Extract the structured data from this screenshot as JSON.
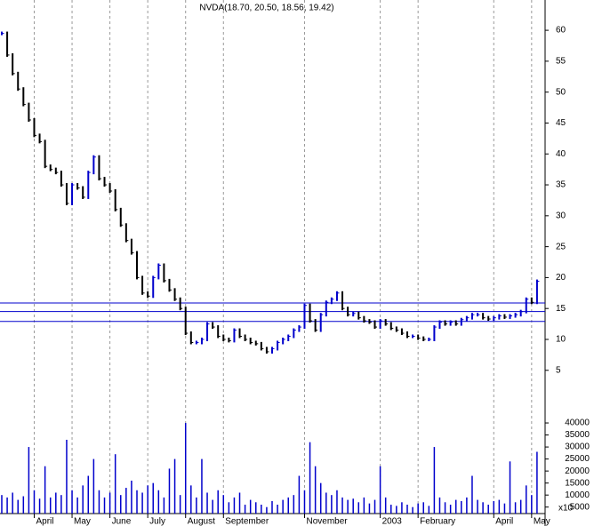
{
  "chart_data": {
    "type": "ohlc",
    "title": "NVDA(18.70, 20.50, 18.56, 19.42)",
    "categories": [
      null,
      null,
      null,
      null,
      null,
      null,
      "April",
      null,
      null,
      null,
      null,
      null,
      null,
      "May",
      null,
      null,
      null,
      null,
      null,
      null,
      "June",
      null,
      null,
      null,
      null,
      null,
      null,
      "July",
      null,
      null,
      null,
      null,
      null,
      null,
      "August",
      null,
      null,
      null,
      null,
      null,
      null,
      "September",
      null,
      null,
      null,
      null,
      null,
      null,
      null,
      null,
      null,
      null,
      null,
      null,
      null,
      null,
      "November",
      null,
      null,
      null,
      null,
      null,
      null,
      null,
      null,
      null,
      null,
      null,
      null,
      null,
      "2003",
      null,
      null,
      null,
      null,
      null,
      null,
      "February",
      null,
      null,
      null,
      null,
      null,
      null,
      null,
      null,
      null,
      null,
      null,
      null,
      null,
      "April",
      null,
      null,
      null,
      null,
      null,
      null,
      "May",
      null
    ],
    "series": [
      {
        "values": [
          59.5,
          56,
          53,
          50.5,
          48,
          45.5,
          43,
          42,
          38,
          37.5,
          37,
          35,
          32,
          35,
          34.5,
          33,
          37,
          39.5,
          36,
          35,
          34,
          31,
          28.5,
          26,
          24,
          20,
          17.5,
          17,
          20,
          22,
          19.5,
          18,
          16.5,
          15,
          11,
          9.5,
          9.5,
          10,
          12.5,
          12,
          10.5,
          10,
          9.8,
          11.5,
          10.5,
          10,
          9.5,
          9.3,
          8.5,
          8,
          8.5,
          9.5,
          10,
          10.5,
          11.5,
          12,
          15.5,
          13,
          11.5,
          14,
          16,
          16.5,
          17.5,
          15,
          14,
          14.2,
          13.5,
          13,
          12.8,
          12,
          13,
          12.5,
          11.8,
          11.5,
          11,
          10.5,
          10.5,
          10.2,
          10,
          10,
          12,
          12.8,
          12.5,
          12.8,
          12.5,
          13.2,
          13.5,
          14,
          14,
          13.5,
          13.3,
          13.5,
          13.8,
          13.6,
          13.8,
          14,
          14.5,
          16.5,
          16,
          19.4
        ],
        "up_color": "#0000cc",
        "down_color": "#000000"
      }
    ],
    "ylim": [
      3.1,
      64.9
    ],
    "yticks": [
      5,
      10,
      15,
      20,
      25,
      30,
      35,
      40,
      45,
      50,
      55,
      60
    ],
    "hlines": [
      15.9,
      14.5,
      12.9
    ],
    "hline_color": "#0000cc",
    "grid": true,
    "volume": {
      "values": [
        10000,
        9000,
        11000,
        8000,
        9500,
        30000,
        12000,
        8500,
        22000,
        9000,
        11000,
        10000,
        33000,
        12000,
        9000,
        14000,
        18000,
        25000,
        12000,
        9000,
        11000,
        27000,
        10000,
        13000,
        16000,
        12000,
        11000,
        14000,
        15000,
        12000,
        9000,
        21000,
        25000,
        10000,
        40000,
        14000,
        9000,
        25000,
        11000,
        8000,
        12000,
        10000,
        7000,
        9000,
        11000,
        6000,
        8000,
        7000,
        6000,
        5000,
        7500,
        6000,
        8000,
        9000,
        10000,
        18000,
        12000,
        32000,
        22000,
        15000,
        11000,
        10000,
        12000,
        9000,
        8000,
        8500,
        7000,
        9000,
        6500,
        8000,
        22000,
        9000,
        6000,
        5500,
        7000,
        6000,
        5000,
        6500,
        7000,
        5500,
        30000,
        9000,
        7000,
        6000,
        8000,
        7500,
        9000,
        18000,
        8000,
        7000,
        6000,
        7500,
        8000,
        6500,
        24000,
        7000,
        8000,
        14000,
        10000,
        28000
      ],
      "color": "#0000cc",
      "ylim": [
        2300,
        54800
      ],
      "yticks": [
        5000,
        10000,
        15000,
        20000,
        25000,
        30000,
        35000,
        40000
      ],
      "unit": "x10"
    }
  }
}
